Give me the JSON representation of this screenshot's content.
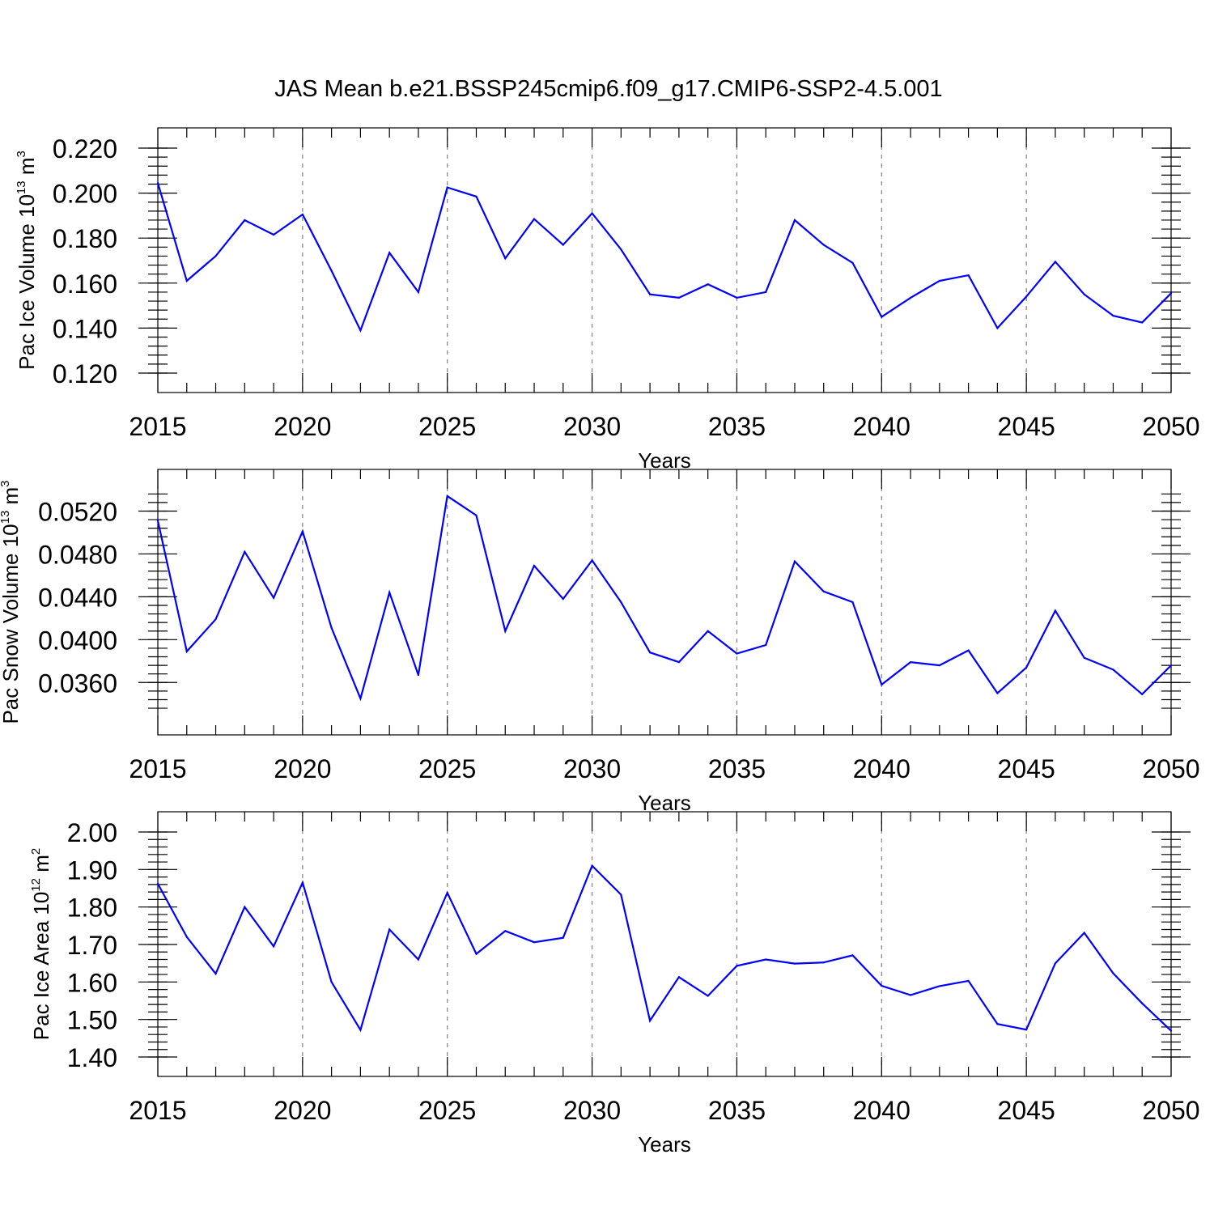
{
  "title": "JAS Mean b.e21.BSSP245cmip6.f09_g17.CMIP6-SSP2-4.5.001",
  "colors": {
    "series": "#0000ff",
    "axis": "#000000",
    "grid": "#808080"
  },
  "chart_data": [
    {
      "type": "line",
      "xlabel": "Years",
      "ylabel": {
        "text": "Pac Ice Volume 10",
        "sup": "13",
        "unit": " m",
        "unit_sup": "3"
      },
      "xlim": [
        2015,
        2050
      ],
      "ylim": [
        0.12,
        0.22
      ],
      "grid": "vertical dashed at major x ticks",
      "x_ticks": [
        "2015",
        "2020",
        "2025",
        "2030",
        "2035",
        "2040",
        "2045",
        "2050"
      ],
      "y_ticks": [
        "0.120",
        "0.140",
        "0.160",
        "0.180",
        "0.200",
        "0.220"
      ],
      "x": [
        2015,
        2016,
        2017,
        2018,
        2019,
        2020,
        2021,
        2022,
        2023,
        2024,
        2025,
        2026,
        2027,
        2028,
        2029,
        2030,
        2031,
        2032,
        2033,
        2034,
        2035,
        2036,
        2037,
        2038,
        2039,
        2040,
        2041,
        2042,
        2043,
        2044,
        2045,
        2046,
        2047,
        2048,
        2049,
        2050
      ],
      "values": [
        0.2045,
        0.161,
        0.172,
        0.188,
        0.1815,
        0.1905,
        0.1655,
        0.139,
        0.1735,
        0.156,
        0.2025,
        0.1985,
        0.171,
        0.1885,
        0.177,
        0.191,
        0.175,
        0.155,
        0.1535,
        0.1595,
        0.1535,
        0.156,
        0.188,
        0.177,
        0.169,
        0.145,
        0.1535,
        0.161,
        0.1635,
        0.14,
        0.154,
        0.1695,
        0.155,
        0.1455,
        0.1425,
        0.1555
      ]
    },
    {
      "type": "line",
      "xlabel": "Years",
      "ylabel": {
        "text": "Pac Snow Volume 10",
        "sup": "13",
        "unit": " m",
        "unit_sup": "3"
      },
      "xlim": [
        2015,
        2050
      ],
      "ylim": [
        0.033,
        0.054
      ],
      "grid": "vertical dashed at major x ticks",
      "x_ticks": [
        "2015",
        "2020",
        "2025",
        "2030",
        "2035",
        "2040",
        "2045",
        "2050"
      ],
      "y_ticks": [
        "0.0360",
        "0.0400",
        "0.0440",
        "0.0480",
        "0.0520"
      ],
      "x": [
        2015,
        2016,
        2017,
        2018,
        2019,
        2020,
        2021,
        2022,
        2023,
        2024,
        2025,
        2026,
        2027,
        2028,
        2029,
        2030,
        2031,
        2032,
        2033,
        2034,
        2035,
        2036,
        2037,
        2038,
        2039,
        2040,
        2041,
        2042,
        2043,
        2044,
        2045,
        2046,
        2047,
        2048,
        2049,
        2050
      ],
      "values": [
        0.0511,
        0.0389,
        0.0419,
        0.0482,
        0.0439,
        0.0501,
        0.0411,
        0.0345,
        0.0444,
        0.0367,
        0.0534,
        0.0516,
        0.0408,
        0.0469,
        0.0438,
        0.0474,
        0.0435,
        0.0388,
        0.0379,
        0.0408,
        0.0387,
        0.0395,
        0.0473,
        0.0445,
        0.0435,
        0.0358,
        0.0379,
        0.0376,
        0.039,
        0.035,
        0.0374,
        0.0427,
        0.0383,
        0.0372,
        0.0349,
        0.0376
      ]
    },
    {
      "type": "line",
      "xlabel": "Years",
      "ylabel": {
        "text": "Pac Ice Area 10",
        "sup": "12",
        "unit": " m",
        "unit_sup": "2"
      },
      "xlim": [
        2015,
        2050
      ],
      "ylim": [
        1.4,
        2.0
      ],
      "grid": "vertical dashed at major x ticks",
      "x_ticks": [
        "2015",
        "2020",
        "2025",
        "2030",
        "2035",
        "2040",
        "2045",
        "2050"
      ],
      "y_ticks": [
        "1.40",
        "1.50",
        "1.60",
        "1.70",
        "1.80",
        "1.90",
        "2.00"
      ],
      "x": [
        2015,
        2016,
        2017,
        2018,
        2019,
        2020,
        2021,
        2022,
        2023,
        2024,
        2025,
        2026,
        2027,
        2028,
        2029,
        2030,
        2031,
        2032,
        2033,
        2034,
        2035,
        2036,
        2037,
        2038,
        2039,
        2040,
        2041,
        2042,
        2043,
        2044,
        2045,
        2046,
        2047,
        2048,
        2049,
        2050
      ],
      "values": [
        1.862,
        1.72,
        1.622,
        1.8,
        1.695,
        1.865,
        1.6,
        1.472,
        1.74,
        1.66,
        1.838,
        1.675,
        1.736,
        1.706,
        1.718,
        1.91,
        1.833,
        1.497,
        1.613,
        1.563,
        1.643,
        1.66,
        1.649,
        1.652,
        1.671,
        1.59,
        1.565,
        1.589,
        1.603,
        1.488,
        1.473,
        1.65,
        1.731,
        1.623,
        1.543,
        1.47
      ]
    }
  ]
}
